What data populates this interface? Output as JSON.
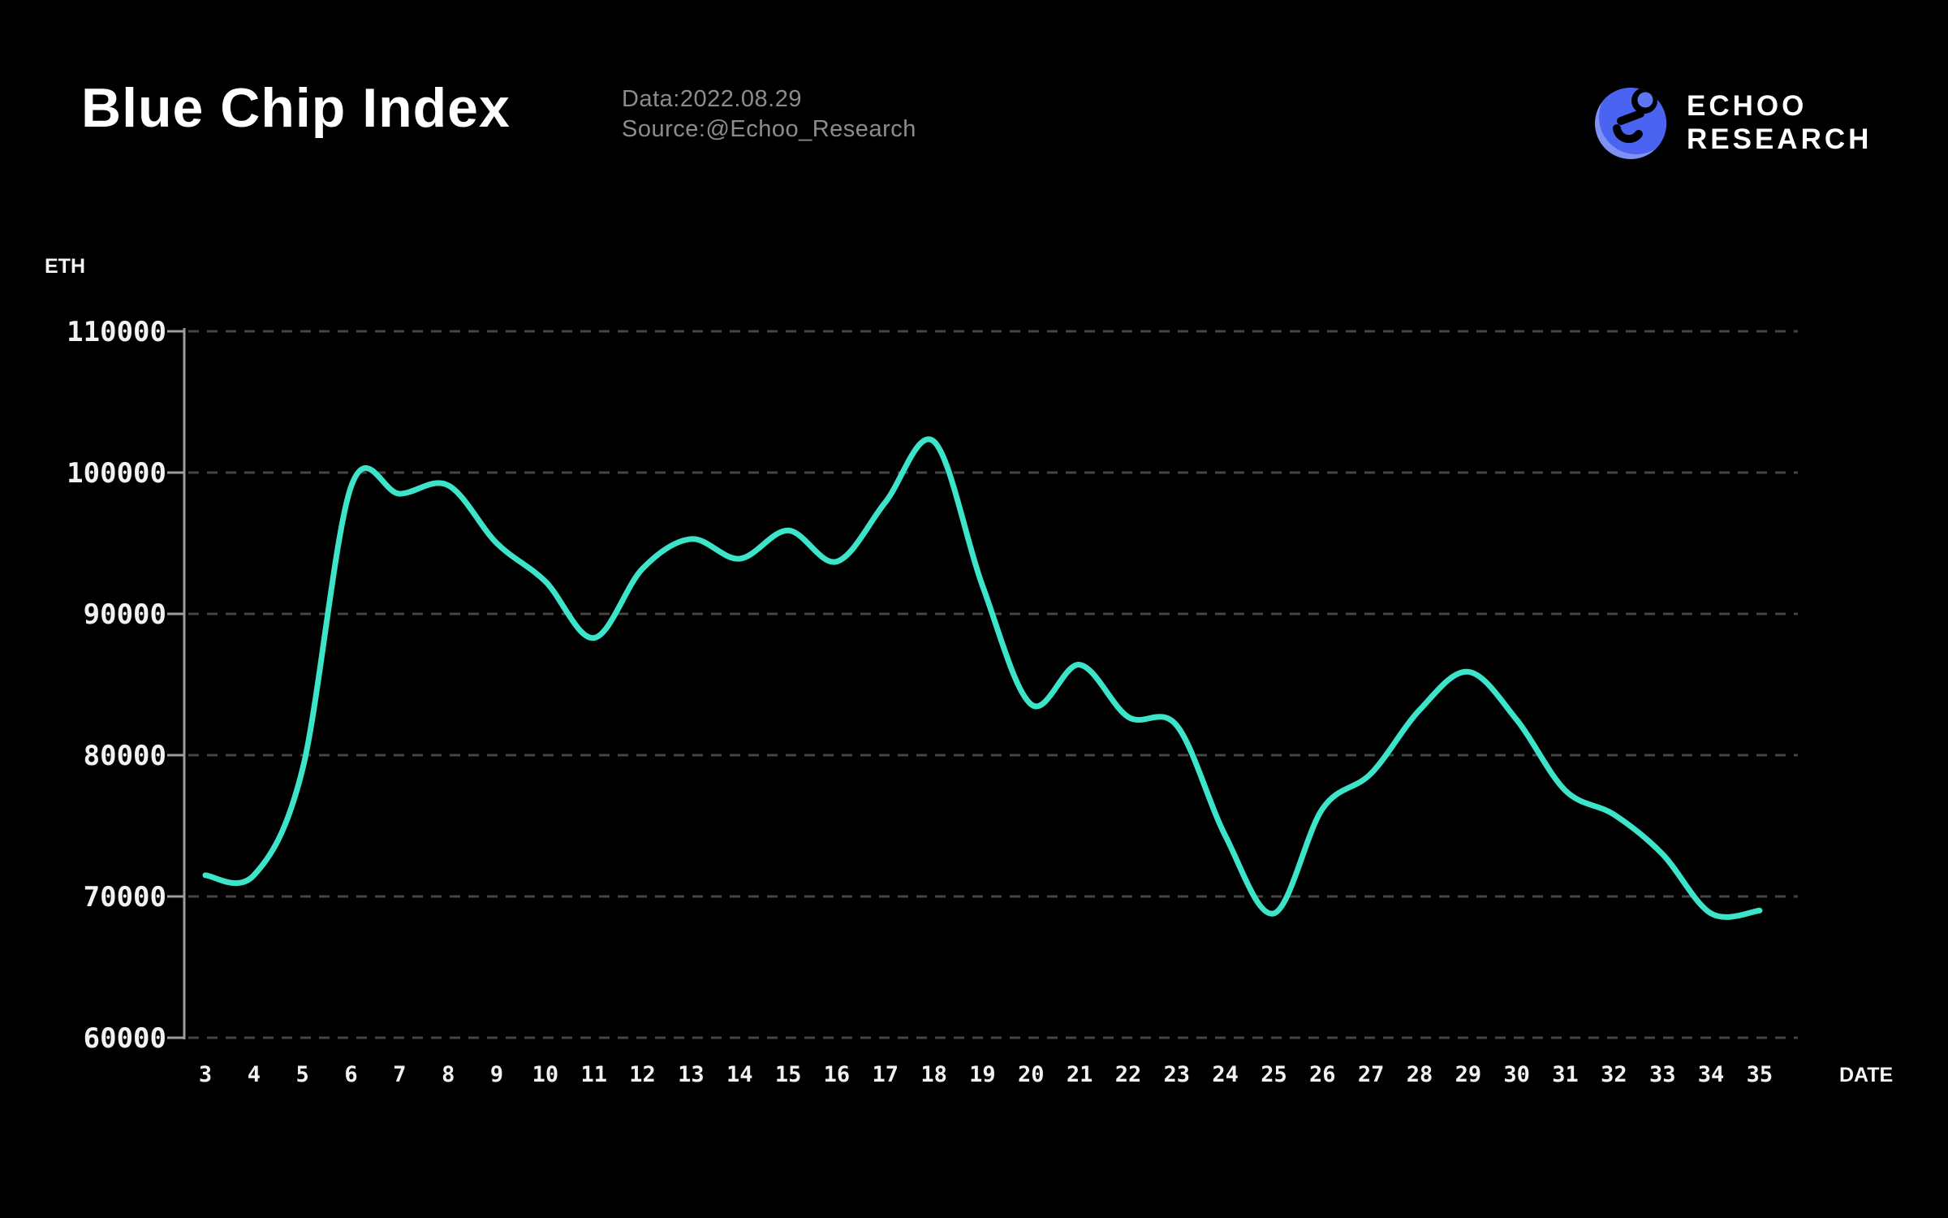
{
  "header": {
    "title": "Blue Chip Index",
    "data_label": "Data:2022.08.29",
    "source_label": "Source:@Echoo_Research"
  },
  "logo": {
    "line1": "ECHOO",
    "line2": "RESEARCH",
    "main_blue": "#4a63f0",
    "light_blue": "#7e91f5",
    "dot_blue": "#5d76f2"
  },
  "chart_data": {
    "type": "line",
    "title": "Blue Chip Index",
    "xlabel": "DATE",
    "ylabel": "ETH",
    "x": [
      3,
      4,
      5,
      6,
      7,
      8,
      9,
      10,
      11,
      12,
      13,
      14,
      15,
      16,
      17,
      18,
      19,
      20,
      21,
      22,
      23,
      24,
      25,
      26,
      27,
      28,
      29,
      30,
      31,
      32,
      33,
      34,
      35
    ],
    "values": [
      71500,
      71500,
      79000,
      99000,
      98500,
      99100,
      95000,
      92300,
      88300,
      93200,
      95300,
      93900,
      95900,
      93700,
      97900,
      102200,
      92000,
      83600,
      86400,
      82700,
      82100,
      74300,
      68800,
      76200,
      78700,
      83200,
      85900,
      82500,
      77500,
      75800,
      73000,
      68800,
      69000
    ],
    "y_ticks": [
      110000,
      100000,
      90000,
      80000,
      70000,
      60000
    ],
    "ylim": [
      60000,
      110000
    ],
    "grid": "horizontal-dashed",
    "legend": "none",
    "line_color": "#3ce5c9",
    "grid_color": "#454545",
    "axis_color": "#9b9b9b",
    "background": "#000000"
  }
}
